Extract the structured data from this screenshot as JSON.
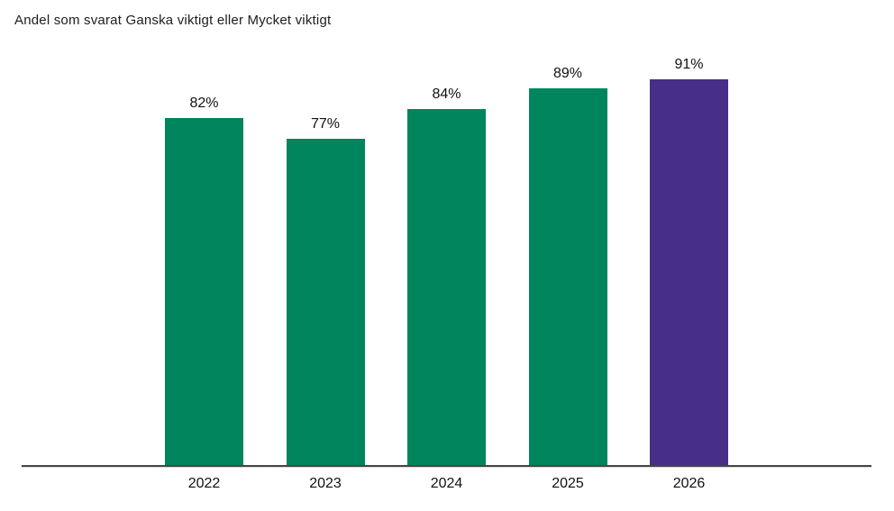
{
  "chart_data": {
    "type": "bar",
    "title": "Andel som svarat Ganska viktigt eller Mycket viktigt",
    "categories": [
      "2022",
      "2023",
      "2024",
      "2025",
      "2026"
    ],
    "values": [
      82,
      77,
      84,
      89,
      91
    ],
    "value_labels": [
      "82%",
      "77%",
      "84%",
      "89%",
      "91%"
    ],
    "bar_colors": [
      "#00855C",
      "#00855C",
      "#00855C",
      "#00855C",
      "#472F87"
    ],
    "xlabel": "",
    "ylabel": "",
    "ylim": [
      0,
      100
    ],
    "grid": false,
    "legend": "none",
    "highlight": {
      "category": "2026",
      "color": "#472F87"
    },
    "base_color": "#00855C",
    "axis_line_color": "#464646",
    "text_color": "#111111",
    "background_color": "#FFFFFF"
  }
}
